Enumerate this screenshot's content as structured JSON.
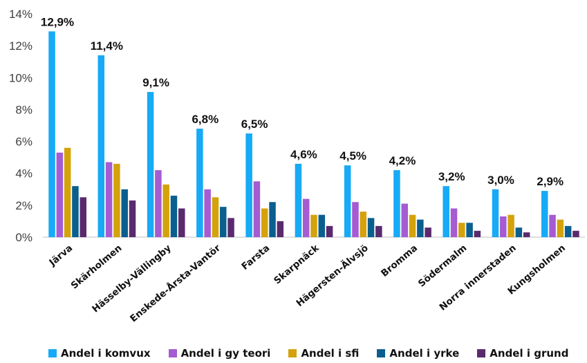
{
  "chart_data": {
    "type": "bar",
    "title": "",
    "xlabel": "",
    "ylabel": "",
    "ylim": [
      0,
      14
    ],
    "yticks": [
      "0%",
      "2%",
      "4%",
      "6%",
      "8%",
      "10%",
      "12%",
      "14%"
    ],
    "grid": false,
    "legend_position": "bottom",
    "categories": [
      "Järva",
      "Skärholmen",
      "Hässelby-Vällingby",
      "Enskede-Årsta-Vantör",
      "Farsta",
      "Skarpnäck",
      "Hägersten-Älvsjö",
      "Bromma",
      "Södermalm",
      "Norra innerstaden",
      "Kungsholmen"
    ],
    "series": [
      {
        "name": "Andel i komvux",
        "color": "#17AAF6",
        "values": [
          12.9,
          11.4,
          9.1,
          6.8,
          6.5,
          4.6,
          4.5,
          4.2,
          3.2,
          3.0,
          2.9
        ]
      },
      {
        "name": "Andel i gy teori",
        "color": "#A55BD1",
        "values": [
          5.3,
          4.7,
          4.2,
          3.0,
          3.5,
          2.4,
          2.2,
          2.1,
          1.8,
          1.3,
          1.4
        ]
      },
      {
        "name": "Andel i sfi",
        "color": "#D4A20B",
        "values": [
          5.6,
          4.6,
          3.3,
          2.5,
          1.8,
          1.4,
          1.6,
          1.4,
          0.9,
          1.4,
          1.1
        ]
      },
      {
        "name": "Andel i yrke",
        "color": "#0A5F8E",
        "values": [
          3.2,
          3.0,
          2.6,
          1.9,
          2.2,
          1.4,
          1.2,
          1.1,
          0.9,
          0.6,
          0.7
        ]
      },
      {
        "name": "Andel i grund",
        "color": "#5A2A6E",
        "values": [
          2.5,
          2.3,
          1.8,
          1.2,
          1.0,
          0.7,
          0.7,
          0.6,
          0.4,
          0.3,
          0.4
        ]
      }
    ],
    "data_labels": [
      "12,9%",
      "11,4%",
      "9,1%",
      "6,8%",
      "6,5%",
      "4,6%",
      "4,5%",
      "4,2%",
      "3,2%",
      "3,0%",
      "2,9%"
    ]
  }
}
